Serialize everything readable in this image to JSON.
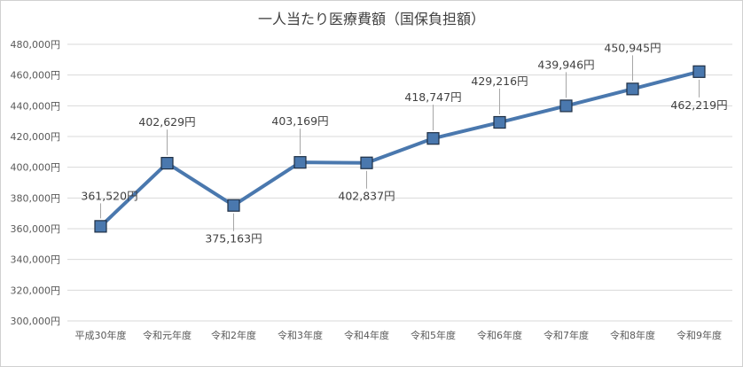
{
  "chart_data": {
    "type": "line",
    "title": "一人当たり医療費額（国保負担額）",
    "categories": [
      "平成30年度",
      "令和元年度",
      "令和2年度",
      "令和3年度",
      "令和4年度",
      "令和5年度",
      "令和6年度",
      "令和7年度",
      "令和8年度",
      "令和9年度"
    ],
    "series": [
      {
        "values": [
          361520,
          402629,
          375163,
          403169,
          402837,
          418747,
          429216,
          439946,
          450945,
          462219
        ],
        "data_labels": [
          "361,520円",
          "402,629円",
          "375,163円",
          "403,169円",
          "402,837円",
          "418,747円",
          "429,216円",
          "439,946円",
          "450,945円",
          "462,219円"
        ],
        "color": "#4a78ae",
        "marker": "square"
      }
    ],
    "y_ticks": [
      "300,000円",
      "320,000円",
      "340,000円",
      "360,000円",
      "380,000円",
      "400,000円",
      "420,000円",
      "440,000円",
      "460,000円",
      "480,000円"
    ],
    "ylim": [
      300000,
      480000
    ],
    "y_step": 20000,
    "grid": true,
    "legend": "none",
    "xlabel": "",
    "ylabel": "",
    "colors": {
      "line": "#4a78ae",
      "marker_border": "#1f2f44",
      "grid": "#d9d9d9",
      "text": "#595959"
    }
  }
}
